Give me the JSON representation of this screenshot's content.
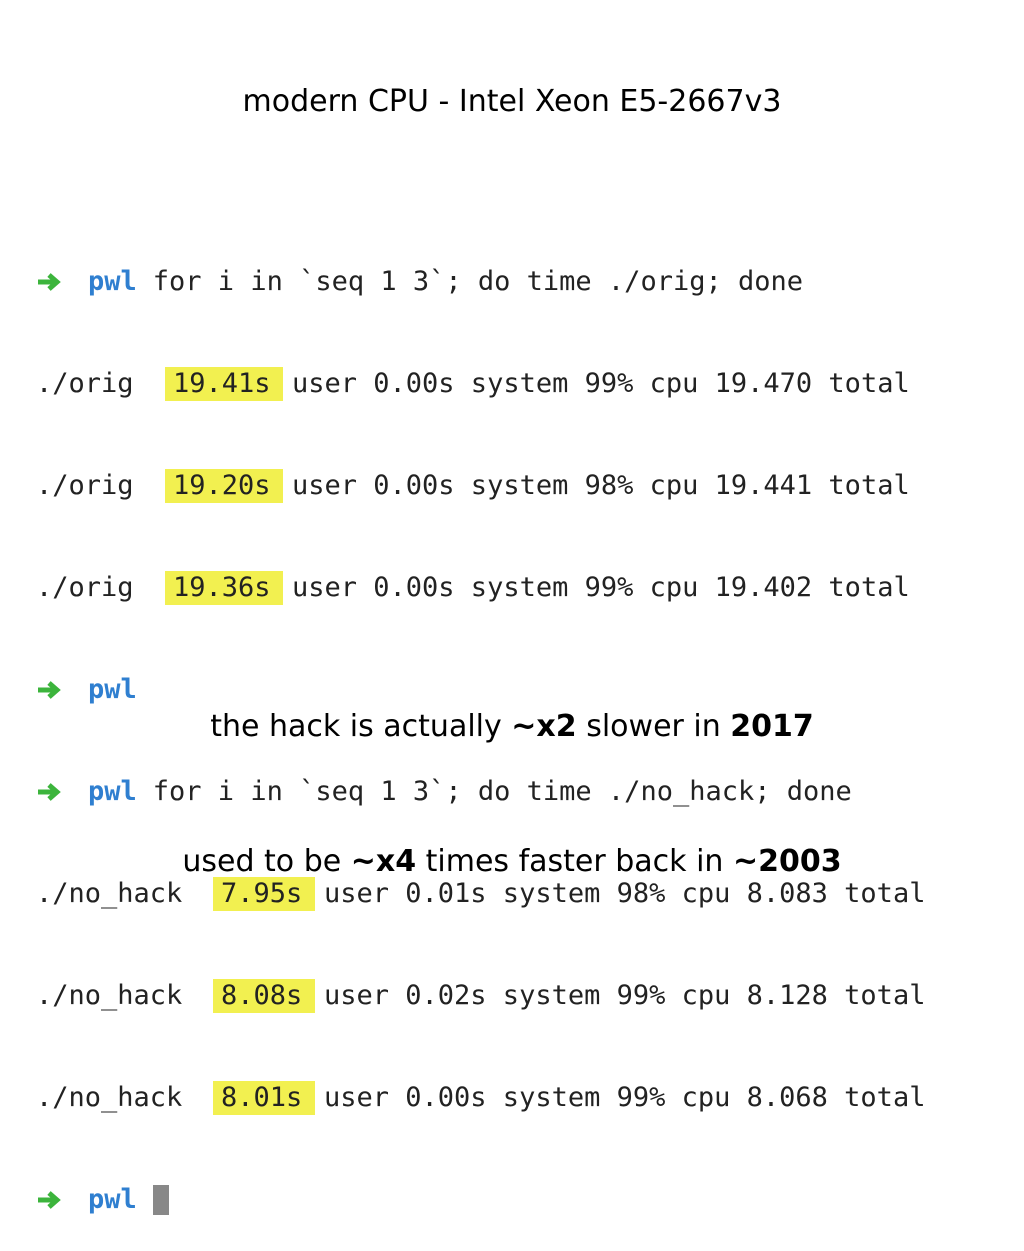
{
  "title": "modern CPU - Intel Xeon E5-2667v3",
  "terminal": {
    "lines": [
      {
        "prompt": "pwl",
        "command": "for i in `seq 1 3`; do time ./orig; done"
      },
      {
        "program": "./orig",
        "time": "19.41s",
        "rest": "user 0.00s system 99% cpu 19.470 total"
      },
      {
        "program": "./orig",
        "time": "19.20s",
        "rest": "user 0.00s system 98% cpu 19.441 total"
      },
      {
        "program": "./orig",
        "time": "19.36s",
        "rest": "user 0.00s system 99% cpu 19.402 total"
      },
      {
        "prompt": "pwl"
      },
      {
        "prompt": "pwl",
        "command": "for i in `seq 1 3`; do time ./no_hack; done"
      },
      {
        "program": "./no_hack",
        "time": "7.95s",
        "rest": "user 0.01s system 98% cpu 8.083 total"
      },
      {
        "program": "./no_hack",
        "time": "8.08s",
        "rest": "user 0.02s system 99% cpu 8.128 total"
      },
      {
        "program": "./no_hack",
        "time": "8.01s",
        "rest": "user 0.00s system 99% cpu 8.068 total"
      },
      {
        "prompt": "pwl"
      }
    ]
  },
  "notes": [
    [
      "the hack is actually ",
      "~x2",
      " slower in ",
      "2017"
    ],
    [
      "used to be ",
      "~x4",
      " times faster back in ",
      "~2003"
    ]
  ]
}
